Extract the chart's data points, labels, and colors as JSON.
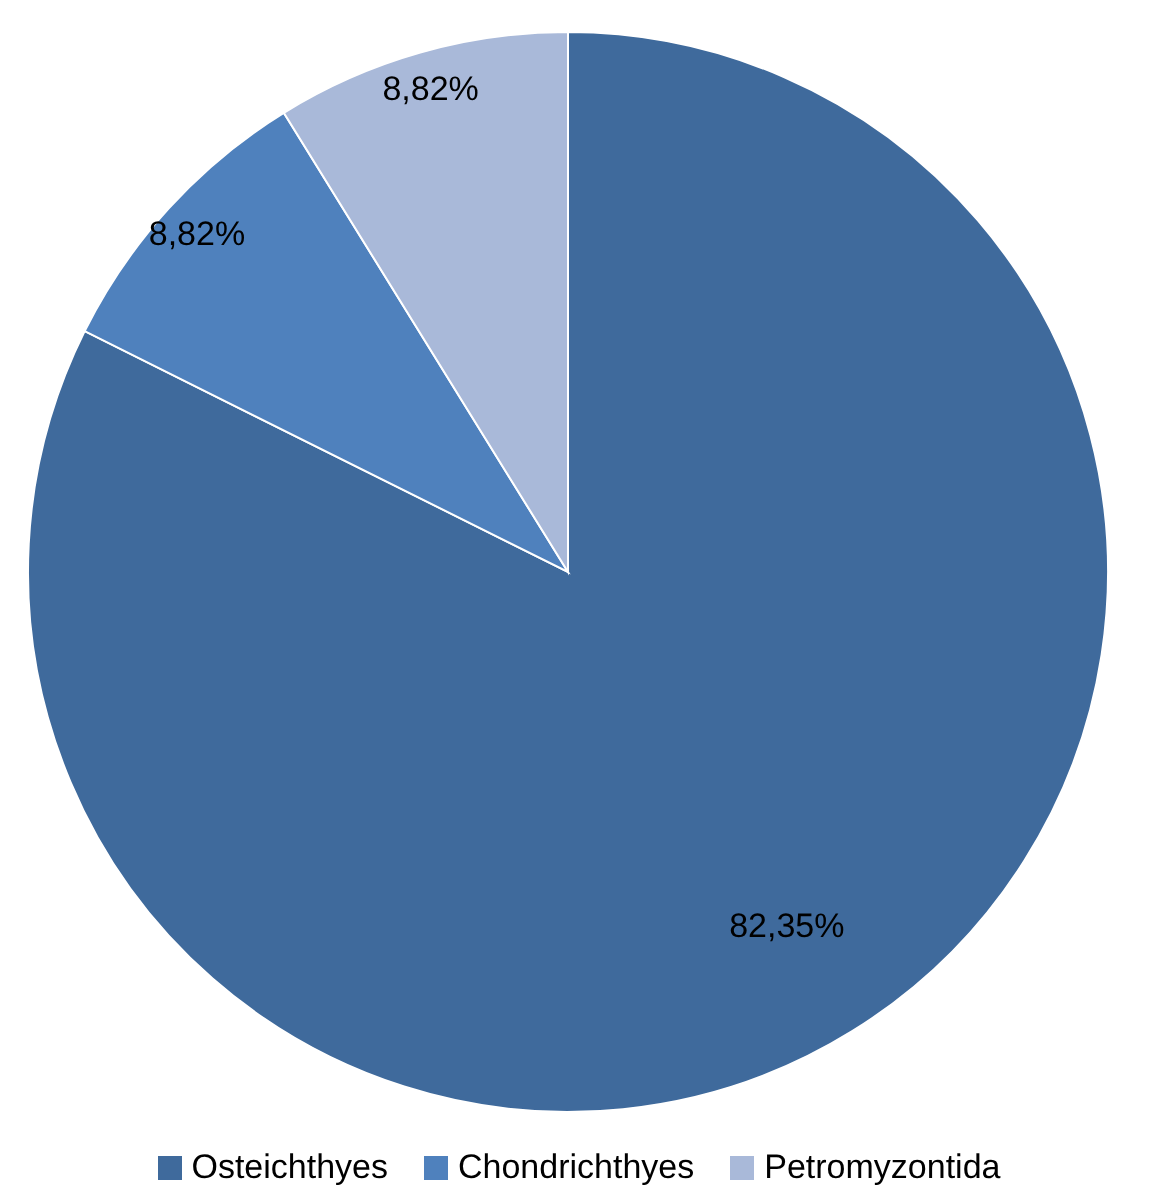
{
  "chart_data": {
    "type": "pie",
    "categories": [
      "Osteichthyes",
      "Chondrichthyes",
      "Petromyzontida"
    ],
    "values": [
      82.35,
      8.82,
      8.82
    ],
    "value_labels": [
      "82,35%",
      "8,82%",
      "8,82%"
    ],
    "colors": [
      "#3f6a9c",
      "#4f81bd",
      "#a9b9d9"
    ],
    "legend": "bottom"
  }
}
